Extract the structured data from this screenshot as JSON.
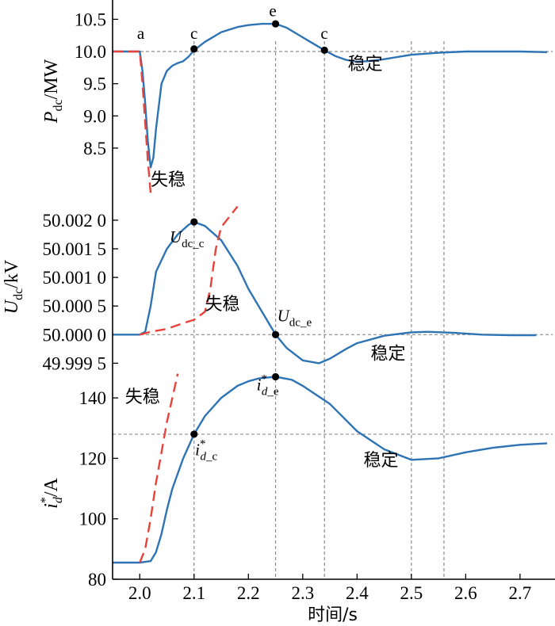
{
  "chart_data": [
    {
      "type": "line",
      "ylabel": {
        "main": "P",
        "sub": "dc",
        "unit": "/MW"
      },
      "ylim": [
        7.6,
        10.8
      ],
      "yticks": [
        "8.5",
        "9.0",
        "9.5",
        "10.0",
        "10.5"
      ],
      "reference_y": 10.0,
      "series": [
        {
          "color": "#2e74b5",
          "style": "solid",
          "x": [
            1.95,
            2.0,
            2.005,
            2.01,
            2.015,
            2.02,
            2.025,
            2.03,
            2.04,
            2.05,
            2.06,
            2.07,
            2.08,
            2.09,
            2.1,
            2.12,
            2.15,
            2.18,
            2.2,
            2.225,
            2.25,
            2.27,
            2.3,
            2.32,
            2.34,
            2.36,
            2.38,
            2.4,
            2.42,
            2.45,
            2.5,
            2.55,
            2.6,
            2.65,
            2.7,
            2.75
          ],
          "y": [
            10.0,
            10.0,
            9.7,
            9.2,
            8.6,
            8.2,
            8.35,
            8.8,
            9.5,
            9.7,
            9.78,
            9.82,
            9.85,
            9.92,
            10.02,
            10.15,
            10.3,
            10.38,
            10.41,
            10.43,
            10.43,
            10.37,
            10.22,
            10.12,
            10.02,
            9.93,
            9.87,
            9.84,
            9.85,
            9.88,
            9.95,
            9.98,
            10.0,
            10.0,
            10.0,
            9.99
          ]
        },
        {
          "color": "#e8433b",
          "style": "dashed",
          "x": [
            1.95,
            2.0,
            2.005,
            2.01,
            2.015,
            2.02
          ],
          "y": [
            10.0,
            10.0,
            9.5,
            8.9,
            8.3,
            7.8
          ]
        }
      ],
      "annotations": [
        {
          "text": "a",
          "x": 1.995,
          "y": 10.2
        },
        {
          "text": "c",
          "x": 2.093,
          "y": 10.2
        },
        {
          "text": "e",
          "x": 2.238,
          "y": 10.55
        },
        {
          "text": "c",
          "x": 2.333,
          "y": 10.2
        },
        {
          "text": "稳定",
          "x": 2.383,
          "y": 9.72
        },
        {
          "text": "失稳",
          "x": 2.02,
          "y": 7.92
        }
      ],
      "points": [
        {
          "x": 2.1,
          "y": 10.04
        },
        {
          "x": 2.25,
          "y": 10.43
        },
        {
          "x": 2.34,
          "y": 10.02
        }
      ]
    },
    {
      "type": "line",
      "ylabel": {
        "main": "U",
        "sub": "dc",
        "unit": "/kV"
      },
      "ylim": [
        49.99945,
        50.00222
      ],
      "yticks": [
        "49.999 5",
        "50.000 0",
        "50.000 5",
        "50.001 0",
        "50.001 5",
        "50.002 0"
      ],
      "reference_y": 50.0,
      "series": [
        {
          "color": "#2e74b5",
          "style": "solid",
          "x": [
            1.95,
            2.0,
            2.01,
            2.02,
            2.03,
            2.05,
            2.07,
            2.09,
            2.1,
            2.12,
            2.15,
            2.18,
            2.2,
            2.225,
            2.25,
            2.27,
            2.3,
            2.33,
            2.35,
            2.38,
            2.4,
            2.45,
            2.5,
            2.53,
            2.58,
            2.63,
            2.68,
            2.73
          ],
          "y": [
            50.0,
            50.0,
            50.00005,
            50.0005,
            50.0011,
            50.0015,
            50.00175,
            50.00192,
            50.00197,
            50.0019,
            50.00165,
            50.0012,
            50.0008,
            50.0004,
            50.0,
            49.99977,
            49.99955,
            49.9995,
            49.99958,
            49.99975,
            49.99985,
            49.99998,
            50.00004,
            50.00005,
            50.00003,
            50.0,
            49.99999,
            49.99999
          ]
        },
        {
          "color": "#e8433b",
          "style": "dashed",
          "x": [
            2.0,
            2.02,
            2.05,
            2.08,
            2.1,
            2.12,
            2.13,
            2.14,
            2.15,
            2.16,
            2.17,
            2.18
          ],
          "y": [
            50.0,
            50.00005,
            50.0001,
            50.0002,
            50.00026,
            50.0004,
            50.0008,
            50.0015,
            50.00188,
            50.002,
            50.00212,
            50.00224
          ]
        }
      ],
      "annotations": [
        {
          "text": "U_dc_c",
          "x": 2.055,
          "y": 50.00161
        },
        {
          "text": "U_dc_e",
          "x": 2.253,
          "y": 50.00023
        },
        {
          "text": "失稳",
          "x": 2.12,
          "y": 50.00043
        },
        {
          "text": "稳定",
          "x": 2.425,
          "y": 49.99957
        }
      ],
      "points": [
        {
          "x": 2.1,
          "y": 50.00197
        },
        {
          "x": 2.25,
          "y": 50.0
        }
      ]
    },
    {
      "type": "line",
      "xlabel": "时间/s",
      "xlim": [
        1.95,
        2.76
      ],
      "xticks": [
        "2.0",
        "2.1",
        "2.2",
        "2.3",
        "2.4",
        "2.5",
        "2.6",
        "2.7"
      ],
      "ylabel": {
        "main": "i",
        "sub": "d",
        "sup": "*",
        "unit": "/A"
      },
      "ylim": [
        80,
        150
      ],
      "yticks": [
        "80",
        "100",
        "120",
        "140"
      ],
      "reference_y": 128,
      "series": [
        {
          "color": "#2e74b5",
          "style": "solid",
          "x": [
            1.95,
            2.0,
            2.02,
            2.03,
            2.04,
            2.05,
            2.06,
            2.08,
            2.1,
            2.12,
            2.15,
            2.18,
            2.2,
            2.22,
            2.25,
            2.28,
            2.3,
            2.35,
            2.4,
            2.45,
            2.5,
            2.55,
            2.6,
            2.65,
            2.7,
            2.75
          ],
          "y": [
            85.5,
            85.5,
            86,
            89,
            95,
            103,
            110,
            120,
            128,
            134,
            140,
            144,
            145.5,
            146.5,
            147,
            146,
            144,
            138,
            129,
            123,
            119.5,
            120,
            122,
            123.5,
            124.5,
            125
          ]
        },
        {
          "color": "#e8433b",
          "style": "dashed",
          "x": [
            2.0,
            2.01,
            2.02,
            2.03,
            2.04,
            2.05,
            2.06,
            2.07
          ],
          "y": [
            85.5,
            90,
            100,
            112,
            122,
            132,
            140,
            148
          ]
        }
      ],
      "annotations": [
        {
          "text": "i*_d_e",
          "x": 2.215,
          "y": 142.5
        },
        {
          "text": "i*_d_c",
          "x": 2.102,
          "y": 121
        },
        {
          "text": "失稳",
          "x": 1.973,
          "y": 138.5
        },
        {
          "text": "稳定",
          "x": 2.412,
          "y": 117.5
        }
      ],
      "points": [
        {
          "x": 2.1,
          "y": 128
        },
        {
          "x": 2.25,
          "y": 147
        }
      ]
    }
  ],
  "vertical_guides_x": [
    2.1,
    2.25,
    2.34,
    2.5,
    2.56
  ]
}
